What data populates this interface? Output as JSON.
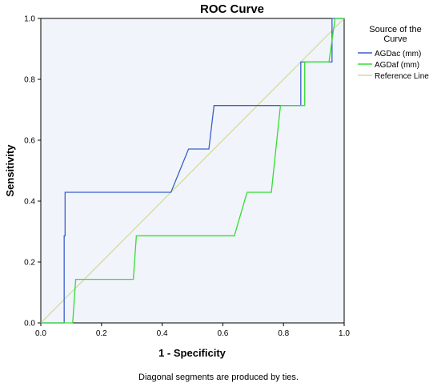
{
  "chart_data": {
    "type": "line",
    "title": "ROC Curve",
    "xlabel": "1 - Specificity",
    "ylabel": "Sensitivity",
    "footnote": "Diagonal segments are produced by ties.",
    "xlim": [
      0,
      1
    ],
    "ylim": [
      0,
      1
    ],
    "xticks": [
      "0.0",
      "0.2",
      "0.4",
      "0.6",
      "0.8",
      "1.0"
    ],
    "yticks": [
      "0.0",
      "0.2",
      "0.4",
      "0.6",
      "0.8",
      "1.0"
    ],
    "grid": false,
    "legend": {
      "title_line1": "Source of the",
      "title_line2": "Curve",
      "placement": "right"
    },
    "series": [
      {
        "name": "AGDac (mm)",
        "color": "#3a5fcd",
        "x": [
          0,
          0.077,
          0.077,
          0.08,
          0.08,
          0.429,
          0.487,
          0.554,
          0.571,
          0.857,
          0.857,
          0.96,
          0.96,
          1,
          1
        ],
        "y": [
          0,
          0,
          0.286,
          0.286,
          0.429,
          0.429,
          0.571,
          0.571,
          0.714,
          0.714,
          0.857,
          0.857,
          1,
          1,
          1
        ]
      },
      {
        "name": "AGDaf (mm)",
        "color": "#33dd33",
        "x": [
          0,
          0.105,
          0.115,
          0.305,
          0.315,
          0.638,
          0.68,
          0.76,
          0.79,
          0.87,
          0.87,
          0.95,
          0.97,
          1
        ],
        "y": [
          0,
          0,
          0.143,
          0.143,
          0.286,
          0.286,
          0.429,
          0.429,
          0.714,
          0.714,
          0.857,
          0.857,
          1,
          1
        ]
      },
      {
        "name": "Reference Line",
        "color": "#d2dc9e",
        "x": [
          0,
          1
        ],
        "y": [
          0,
          1
        ]
      }
    ]
  }
}
